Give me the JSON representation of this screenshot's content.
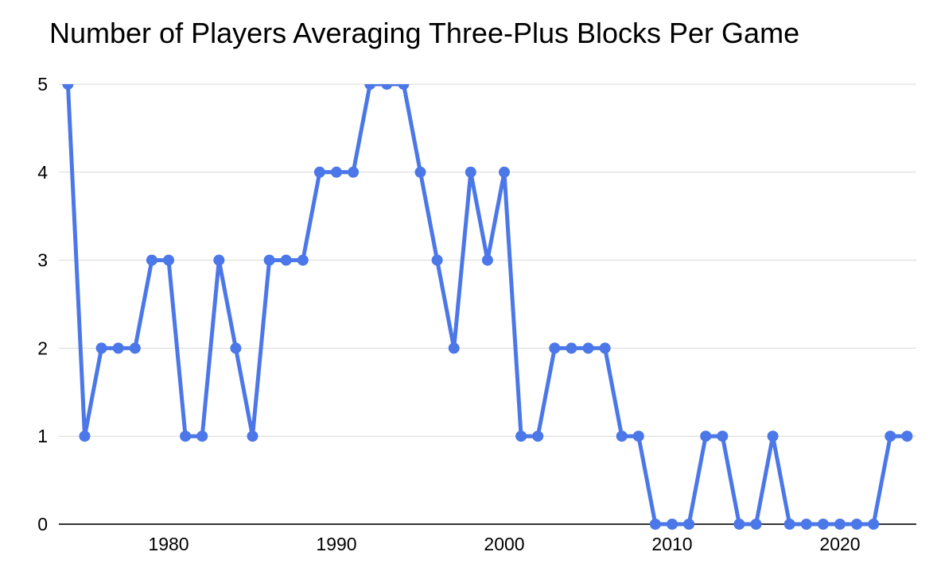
{
  "chart_data": {
    "type": "line",
    "title": "Number of Players Averaging Three-Plus Blocks Per Game",
    "xlabel": "",
    "ylabel": "",
    "x": [
      1974,
      1975,
      1976,
      1977,
      1978,
      1979,
      1980,
      1981,
      1982,
      1983,
      1984,
      1985,
      1986,
      1987,
      1988,
      1989,
      1990,
      1991,
      1992,
      1993,
      1994,
      1995,
      1996,
      1997,
      1998,
      1999,
      2000,
      2001,
      2002,
      2003,
      2004,
      2005,
      2006,
      2007,
      2008,
      2009,
      2010,
      2011,
      2012,
      2013,
      2014,
      2015,
      2016,
      2017,
      2018,
      2019,
      2020,
      2021,
      2022,
      2023,
      2024
    ],
    "values": [
      5,
      1,
      2,
      2,
      2,
      3,
      3,
      1,
      1,
      3,
      2,
      1,
      3,
      3,
      3,
      4,
      4,
      4,
      5,
      5,
      5,
      4,
      3,
      2,
      4,
      3,
      4,
      1,
      1,
      2,
      2,
      2,
      2,
      1,
      1,
      0,
      0,
      0,
      1,
      1,
      0,
      0,
      1,
      0,
      0,
      0,
      0,
      0,
      0,
      1,
      1
    ],
    "xlim": [
      1974,
      2024
    ],
    "ylim": [
      0,
      5
    ],
    "yticks": [
      0,
      1,
      2,
      3,
      4,
      5
    ],
    "xticks": [
      1980,
      1990,
      2000,
      2010,
      2020
    ],
    "grid": "horizontal",
    "legend": "none",
    "marker": "circle",
    "styles": {
      "line_color": "#4B77E8",
      "grid_color": "#D9D9D9",
      "axis_color": "#333333",
      "text_color": "#000000",
      "background": "#FFFFFF"
    }
  }
}
